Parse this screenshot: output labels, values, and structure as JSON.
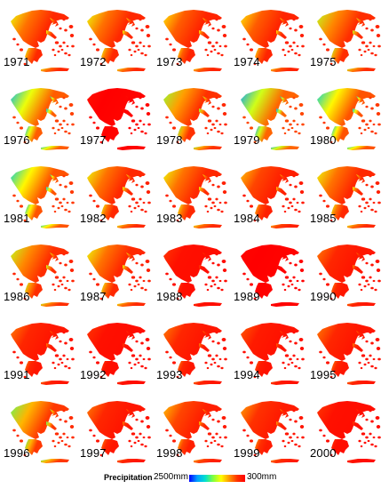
{
  "title": "",
  "years": [
    "1971",
    "1972",
    "1973",
    "1974",
    "1975",
    "1976",
    "1977",
    "1978",
    "1979",
    "1980",
    "1981",
    "1982",
    "1983",
    "1984",
    "1985",
    "1986",
    "1987",
    "1988",
    "1989",
    "1990",
    "1991",
    "1992",
    "1993",
    "1994",
    "1995",
    "1996",
    "1997",
    "1998",
    "1999",
    "2000"
  ],
  "wetness": [
    0.45,
    0.45,
    0.4,
    0.4,
    0.5,
    0.8,
    0.05,
    0.55,
    0.85,
    0.75,
    0.75,
    0.45,
    0.45,
    0.35,
    0.45,
    0.5,
    0.45,
    0.15,
    0.02,
    0.25,
    0.25,
    0.15,
    0.25,
    0.2,
    0.25,
    0.6,
    0.25,
    0.35,
    0.3,
    0.15
  ],
  "legend": {
    "title": "Precipitation",
    "min_label": "2500mm",
    "max_label": "300mm",
    "colors": [
      "#0000ff",
      "#00a0ff",
      "#00e0d0",
      "#80ff40",
      "#ffff00",
      "#ff9900",
      "#ff3300",
      "#ff0000"
    ]
  }
}
